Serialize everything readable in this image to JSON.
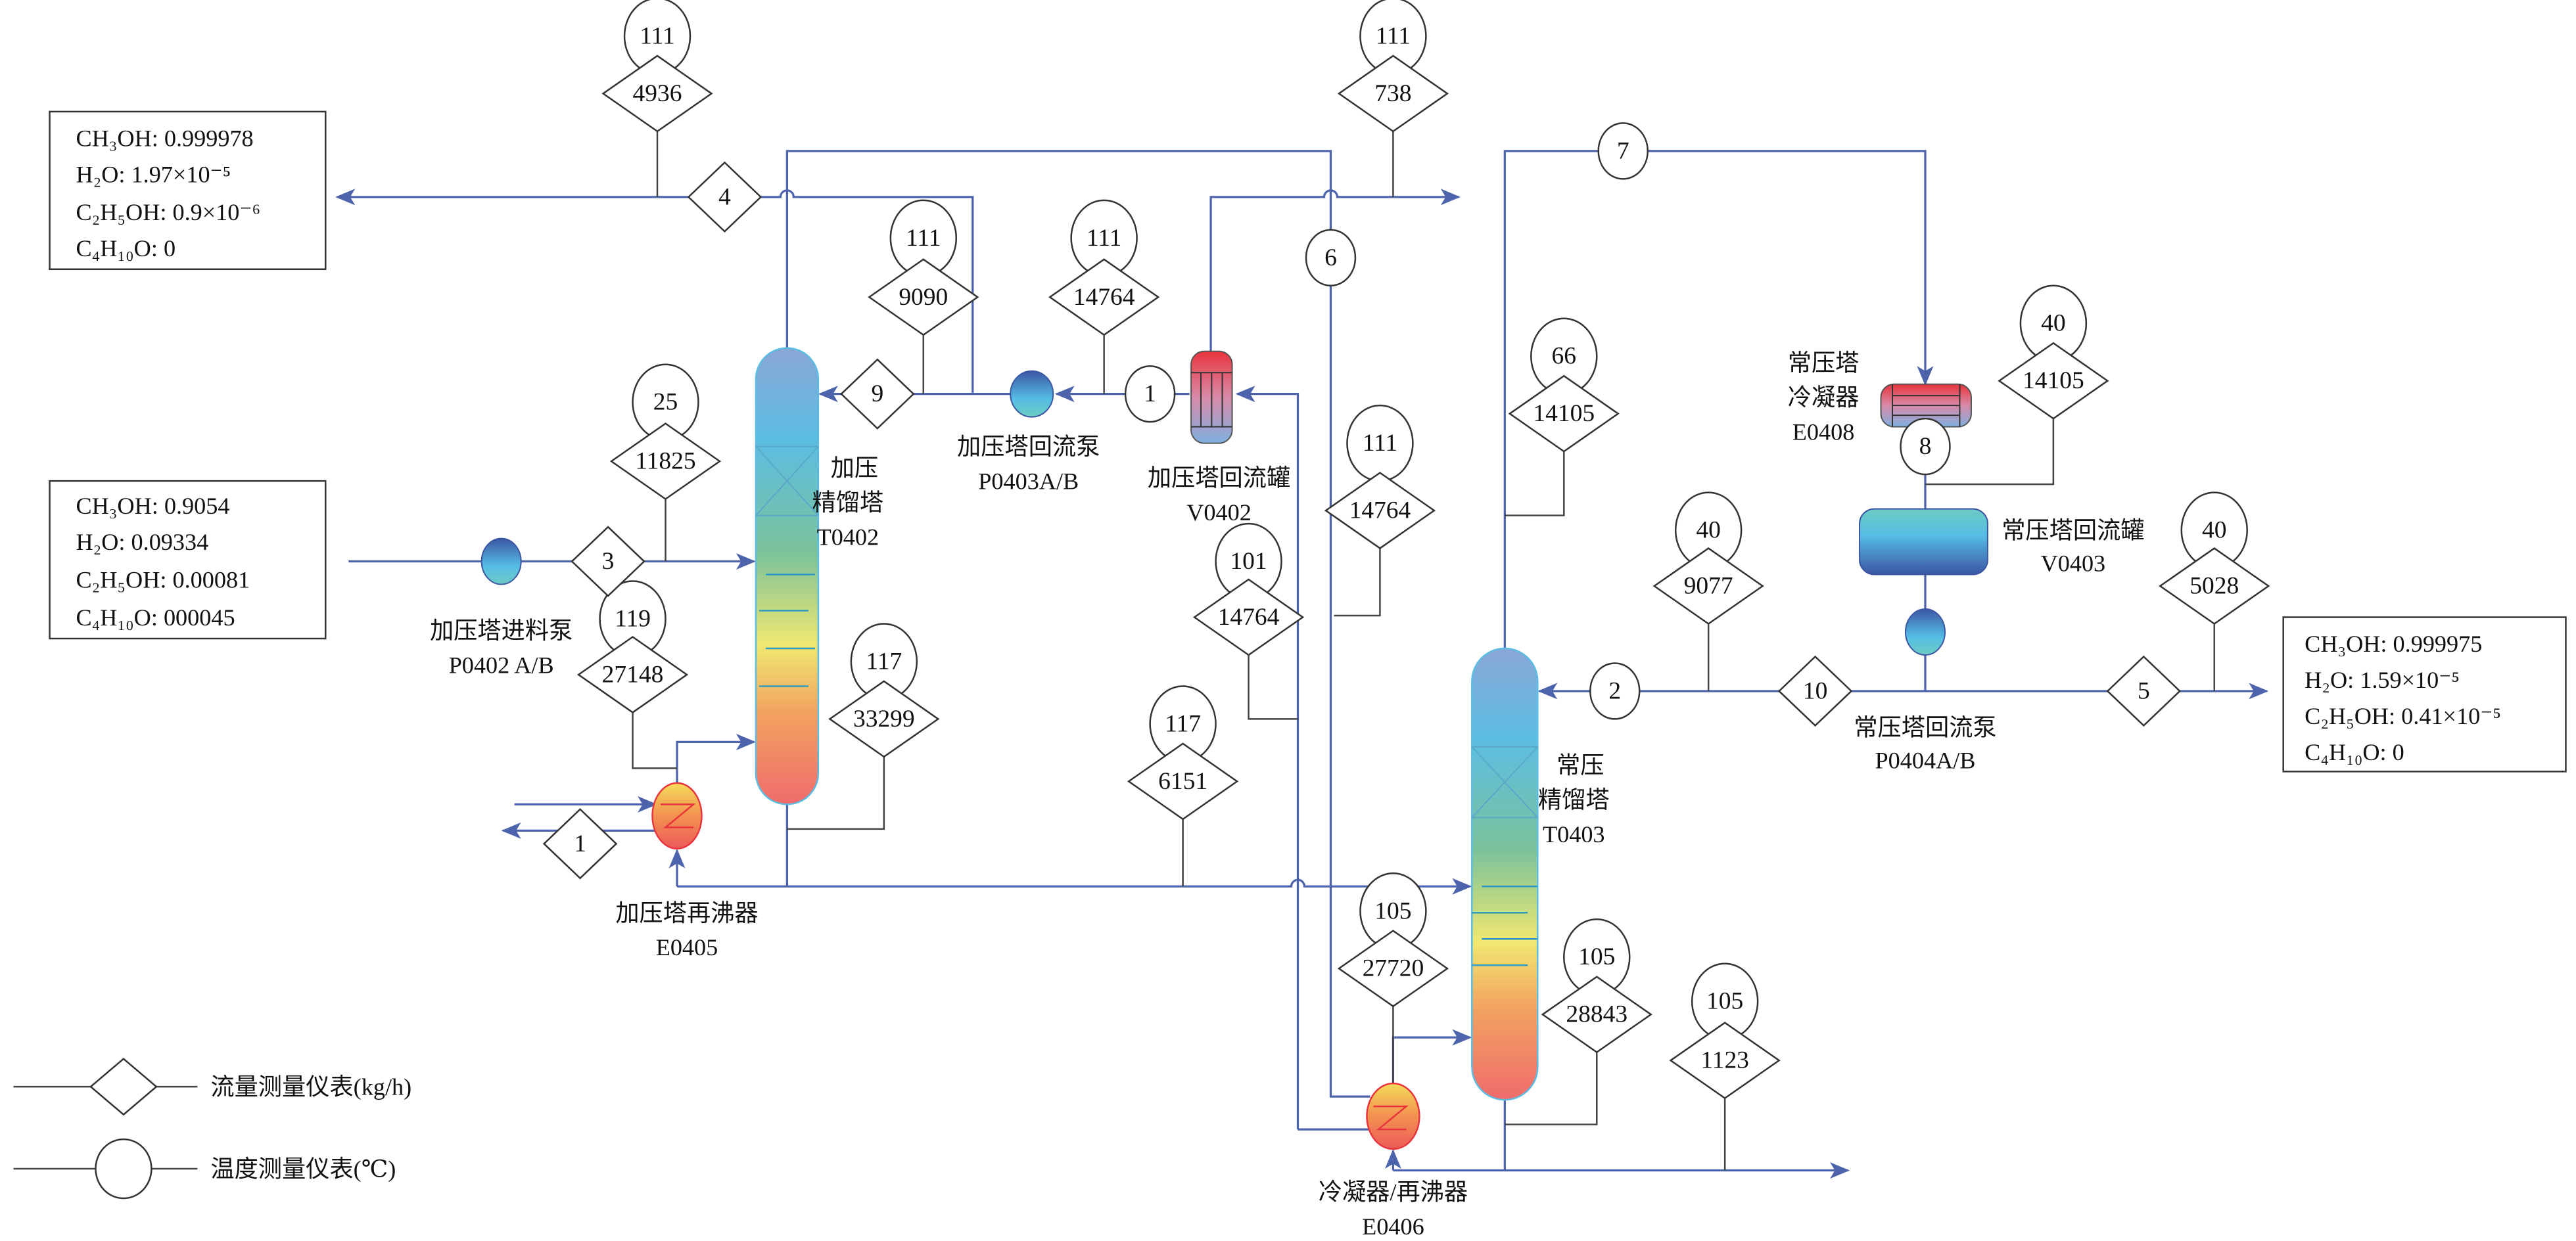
{
  "colors": {
    "pipe": "#4d63ab",
    "signal": "#444444",
    "hot": "#e8413f",
    "cold": "#5bbde3"
  },
  "compositions": {
    "top_left": [
      "CH₃OH: 0.999978",
      "H₂O: 1.97×10⁻⁵",
      "C₂H₅OH: 0.9×10⁻⁶",
      "C₄H₁₀O: 0"
    ],
    "feed": [
      "CH₃OH: 0.9054",
      "H₂O: 0.09334",
      "C₂H₅OH: 0.00081",
      "C₄H₁₀O: 000045"
    ],
    "right": [
      "CH₃OH: 0.999975",
      "H₂O: 1.59×10⁻⁵",
      "C₂H₅OH: 0.41×10⁻⁵",
      "C₄H₁₀O: 0"
    ]
  },
  "instruments": [
    {
      "temp": "111",
      "flow": "4936"
    },
    {
      "temp": "111",
      "flow": "738"
    },
    {
      "temp": "111",
      "flow": "9090"
    },
    {
      "temp": "111",
      "flow": "14764"
    },
    {
      "temp": "25",
      "flow": "11825"
    },
    {
      "temp": "66",
      "flow": "14105"
    },
    {
      "temp": "40",
      "flow": "14105"
    },
    {
      "temp": "111",
      "flow": "14764"
    },
    {
      "temp": "101",
      "flow": "14764"
    },
    {
      "temp": "119",
      "flow": "27148"
    },
    {
      "temp": "117",
      "flow": "33299"
    },
    {
      "temp": "117",
      "flow": "6151"
    },
    {
      "temp": "40",
      "flow": "9077"
    },
    {
      "temp": "40",
      "flow": "5028"
    },
    {
      "temp": "105",
      "flow": "27720"
    },
    {
      "temp": "105",
      "flow": "28843"
    },
    {
      "temp": "105",
      "flow": "1123"
    }
  ],
  "stream_flow_tags": [
    "4",
    "9",
    "3",
    "1",
    "10",
    "5"
  ],
  "stream_temp_tags": [
    "6",
    "7",
    "1",
    "2",
    "8"
  ],
  "equipment": {
    "t0402": [
      "加压",
      "精馏塔",
      "T0402"
    ],
    "t0403": [
      "常压",
      "精馏塔",
      "T0403"
    ],
    "p0402": [
      "加压塔进料泵",
      "P0402 A/B"
    ],
    "e0405": [
      "加压塔再沸器",
      "E0405"
    ],
    "p0403": [
      "加压塔回流泵",
      "P0403A/B"
    ],
    "v0402": [
      "加压塔回流罐",
      "V0402"
    ],
    "e0408": [
      "常压塔",
      "冷凝器",
      "E0408"
    ],
    "v0403": [
      "常压塔回流罐",
      "V0403"
    ],
    "p0404": [
      "常压塔回流泵",
      "P0404A/B"
    ],
    "e0406": [
      "冷凝器/再沸器",
      "E0406"
    ]
  },
  "legend": {
    "flow": "流量测量仪表(kg/h)",
    "temp": "温度测量仪表(℃)"
  }
}
